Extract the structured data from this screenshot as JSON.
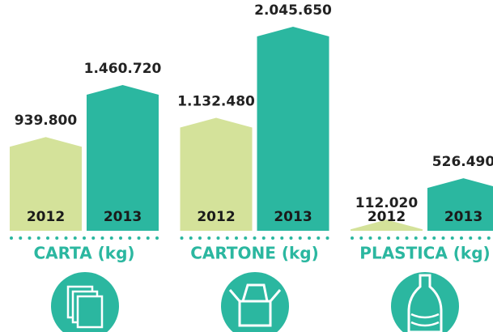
{
  "chart_data": {
    "type": "bar",
    "categories": [
      "CARTA (kg)",
      "CARTONE (kg)",
      "PLASTICA (kg)"
    ],
    "series": [
      {
        "name": "2012",
        "color": "#d4e29a",
        "values": [
          939800,
          1132480,
          112020
        ],
        "value_labels": [
          "939.800",
          "1.132.480",
          "112.020"
        ]
      },
      {
        "name": "2013",
        "color": "#2bb7a0",
        "values": [
          1460720,
          2045650,
          526490
        ],
        "value_labels": [
          "1.460.720",
          "2.045.650",
          "526.490"
        ]
      }
    ]
  }
}
